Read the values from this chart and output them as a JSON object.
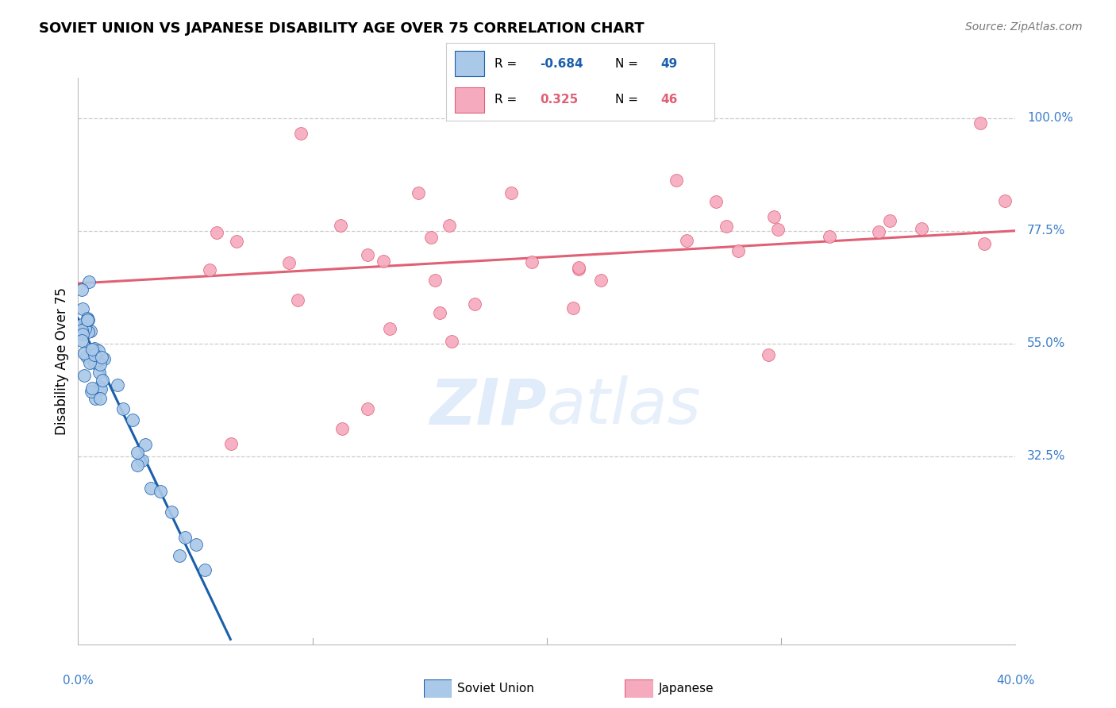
{
  "title": "SOVIET UNION VS JAPANESE DISABILITY AGE OVER 75 CORRELATION CHART",
  "source": "Source: ZipAtlas.com",
  "ylabel": "Disability Age Over 75",
  "legend": {
    "soviet_R": "-0.684",
    "soviet_N": "49",
    "japanese_R": "0.325",
    "japanese_N": "46"
  },
  "soviet_color": "#aac8e8",
  "japanese_color": "#f5aabe",
  "soviet_line_color": "#1a5fab",
  "japanese_line_color": "#e06075",
  "background_color": "#ffffff",
  "grid_color": "#cccccc",
  "ytick_vals": [
    0.325,
    0.55,
    0.775,
    1.0
  ],
  "ytick_labels": [
    "32.5%",
    "55.0%",
    "77.5%",
    "100.0%"
  ],
  "xmin": 0.0,
  "xmax": 0.4,
  "ymin": -0.05,
  "ymax": 1.08,
  "japanese_line_x0": 0.0,
  "japanese_line_y0": 0.67,
  "japanese_line_x1": 0.4,
  "japanese_line_y1": 0.775,
  "soviet_line_x0": 0.0,
  "soviet_line_y0": 0.6,
  "soviet_line_x1": 0.065,
  "soviet_line_y1": -0.04
}
